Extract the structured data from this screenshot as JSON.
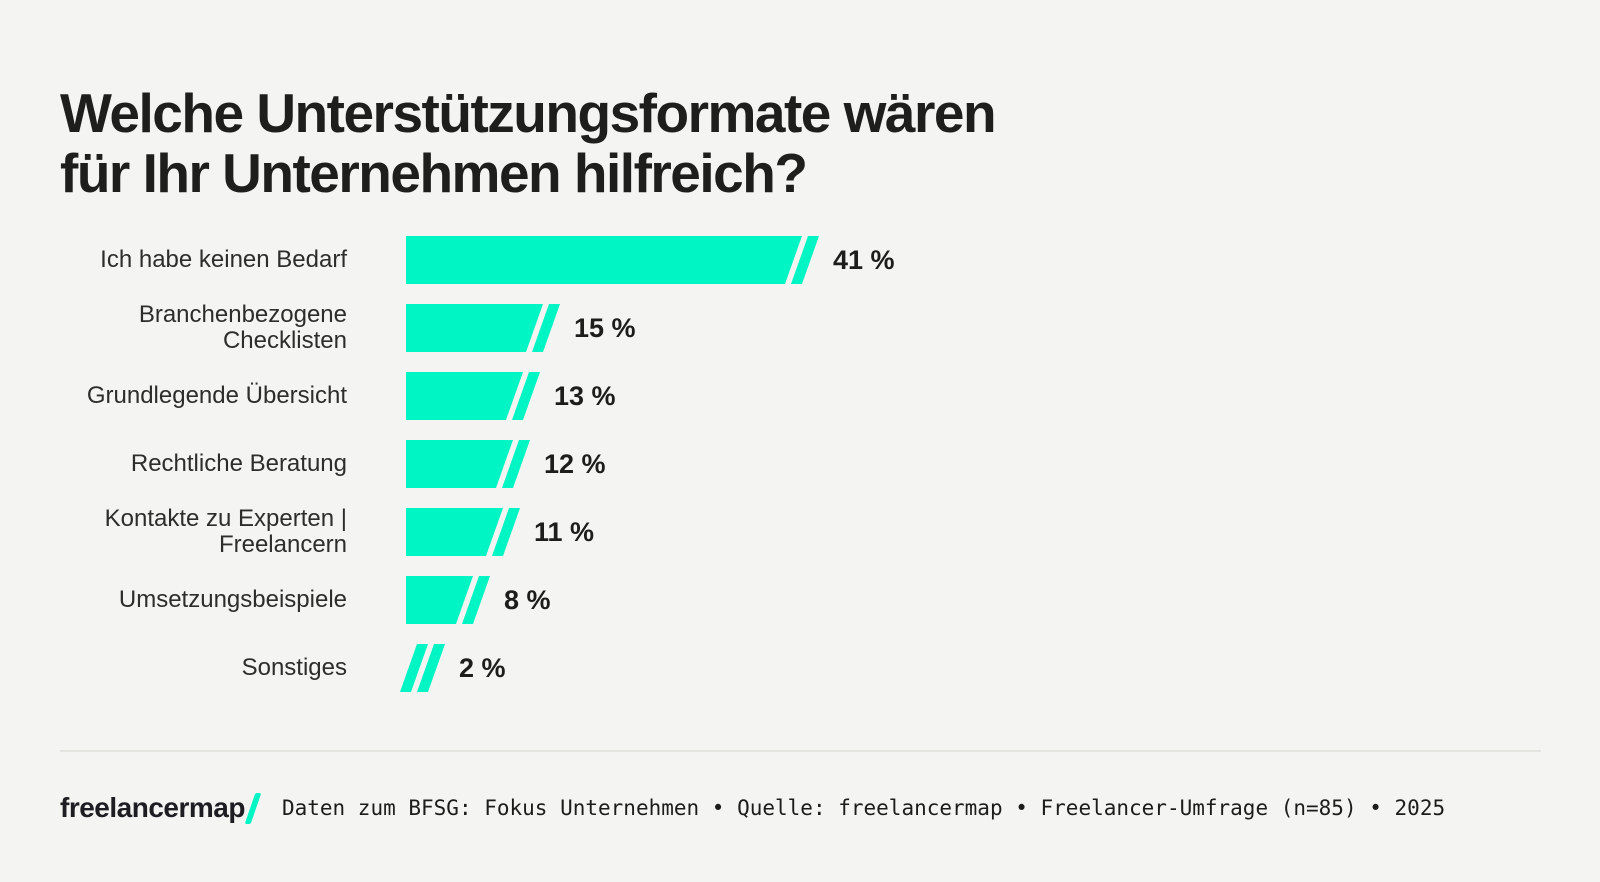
{
  "title": "Welche Unterstützungsformate wären\nfür Ihr Unternehmen hilfreich?",
  "chart_data": {
    "type": "bar",
    "orientation": "horizontal",
    "title": "Welche Unterstützungsformate wären für Ihr Unternehmen hilfreich?",
    "categories": [
      "Ich habe keinen Bedarf",
      "Branchenbezogene Checklisten",
      "Grundlegende Übersicht",
      "Rechtliche Beratung",
      "Kontakte zu Experten | Freelancern",
      "Umsetzungsbeispiele",
      "Sonstiges"
    ],
    "values": [
      41,
      15,
      13,
      12,
      11,
      8,
      2
    ],
    "value_labels": [
      "41 %",
      "15 %",
      "13 %",
      "12 %",
      "11 %",
      "8 %",
      "2 %"
    ],
    "unit": "%",
    "xlim": [
      0,
      41
    ],
    "grid": false,
    "legend": false,
    "bar_color": "#00F5C4",
    "bar_end_style": "slanted-with-slash"
  },
  "footer": {
    "logo_text": "freelancermap",
    "source_text": "Daten zum BFSG: Fokus Unternehmen • Quelle: freelancermap • Freelancer-Umfrage (n=85) • 2025"
  },
  "colors": {
    "background": "#F4F4F2",
    "bar": "#00F5C4",
    "title_text": "#1E1E1C",
    "label_text": "#2D2D2B",
    "divider": "#E4E4E1"
  }
}
